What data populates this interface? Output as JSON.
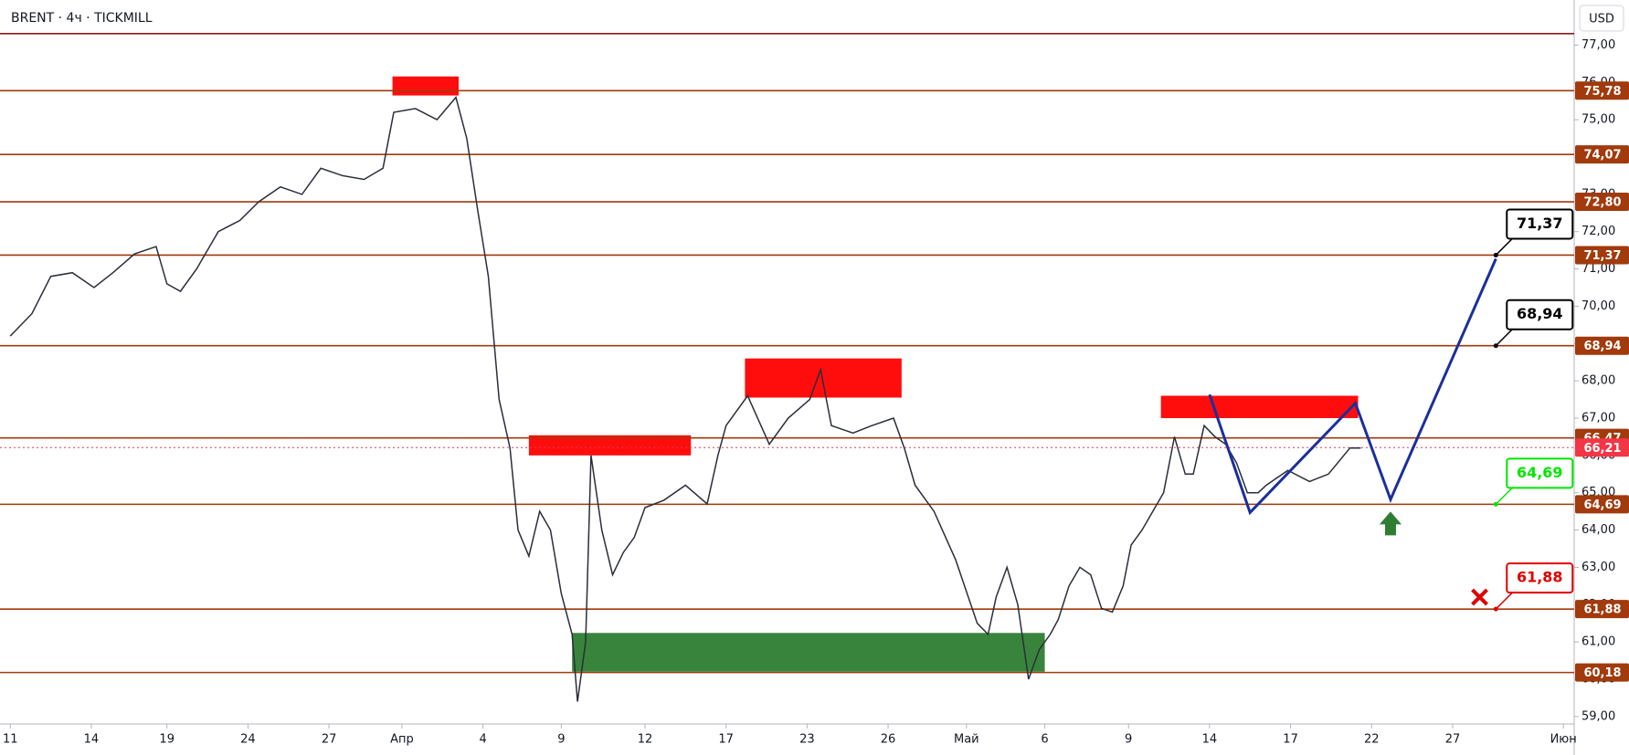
{
  "chart_data": {
    "type": "line",
    "title": "BRENT · 4ч · TICKMILL",
    "currency": "USD",
    "xlim": [
      -0.38,
      57.9
    ],
    "ylim": [
      58.8,
      78.21
    ],
    "grid": false,
    "xticks": [
      {
        "value": 0,
        "label": "11"
      },
      {
        "value": 3,
        "label": "14"
      },
      {
        "value": 5.8,
        "label": "19"
      },
      {
        "value": 8.8,
        "label": "24"
      },
      {
        "value": 11.8,
        "label": "27"
      },
      {
        "value": 14.5,
        "label": "Апр"
      },
      {
        "value": 17.5,
        "label": "4"
      },
      {
        "value": 20.4,
        "label": "9"
      },
      {
        "value": 23.5,
        "label": "12"
      },
      {
        "value": 26.5,
        "label": "17"
      },
      {
        "value": 29.5,
        "label": "23"
      },
      {
        "value": 32.5,
        "label": "26"
      },
      {
        "value": 35.4,
        "label": "Май"
      },
      {
        "value": 38.3,
        "label": "6"
      },
      {
        "value": 41.4,
        "label": "9"
      },
      {
        "value": 44.4,
        "label": "14"
      },
      {
        "value": 47.4,
        "label": "17"
      },
      {
        "value": 50.4,
        "label": "22"
      },
      {
        "value": 53.4,
        "label": "27"
      },
      {
        "value": 57.5,
        "label": "Июн"
      }
    ],
    "yticks": [
      {
        "value": 59,
        "label": "59,00"
      },
      {
        "value": 60,
        "label": "60,00"
      },
      {
        "value": 61,
        "label": "61,00"
      },
      {
        "value": 62,
        "label": "62,00"
      },
      {
        "value": 63,
        "label": "63,00"
      },
      {
        "value": 64,
        "label": "64,00"
      },
      {
        "value": 65,
        "label": "65,00"
      },
      {
        "value": 66,
        "label": "66,00"
      },
      {
        "value": 67,
        "label": "67,00"
      },
      {
        "value": 68,
        "label": "68,00"
      },
      {
        "value": 69,
        "label": "69,00"
      },
      {
        "value": 70,
        "label": "70,00"
      },
      {
        "value": 71,
        "label": "71,00"
      },
      {
        "value": 72,
        "label": "72,00"
      },
      {
        "value": 73,
        "label": "73,00"
      },
      {
        "value": 74,
        "label": "74,00"
      },
      {
        "value": 75,
        "label": "75,00"
      },
      {
        "value": 76,
        "label": "76,00"
      },
      {
        "value": 77,
        "label": "77,00"
      }
    ],
    "series": [
      {
        "color": "#2a2e39",
        "x": [
          0,
          0.8,
          1.5,
          2.3,
          3.1,
          3.8,
          4.6,
          5.4,
          5.8,
          6.3,
          6.9,
          7.7,
          8.5,
          9.2,
          10.0,
          10.8,
          11.5,
          12.3,
          13.1,
          13.8,
          14.2,
          15.0,
          15.8,
          16.5,
          16.9,
          17.3,
          17.7,
          18.1,
          18.5,
          18.8,
          19.2,
          19.6,
          20.0,
          20.4,
          20.8,
          21.0,
          21.3,
          21.5,
          21.9,
          22.3,
          22.7,
          23.1,
          23.5,
          24.2,
          25.0,
          25.8,
          26.2,
          26.5,
          27.3,
          28.1,
          28.8,
          29.6,
          30.0,
          30.4,
          31.2,
          31.9,
          32.7,
          33.1,
          33.5,
          34.2,
          35.0,
          35.8,
          36.2,
          36.5,
          36.9,
          37.3,
          37.7,
          38.1,
          38.5,
          38.8,
          39.2,
          39.6,
          40.0,
          40.4,
          40.8,
          41.2,
          41.5,
          41.9,
          42.3,
          42.7,
          43.1,
          43.5,
          43.8,
          44.2,
          44.6,
          45.0,
          45.4,
          45.8,
          46.2,
          46.5,
          47.3,
          48.1,
          48.8,
          49.6,
          50.0
        ],
        "values": [
          69.2,
          69.8,
          70.8,
          70.9,
          70.5,
          70.9,
          71.4,
          71.6,
          70.6,
          70.4,
          71.0,
          72.0,
          72.3,
          72.8,
          73.2,
          73.0,
          73.7,
          73.5,
          73.4,
          73.7,
          75.2,
          75.3,
          75.0,
          75.6,
          74.5,
          72.6,
          70.8,
          67.5,
          66.2,
          64.0,
          63.3,
          64.5,
          64.0,
          62.3,
          61.2,
          59.4,
          61.0,
          66.0,
          64.0,
          62.8,
          63.4,
          63.8,
          64.6,
          64.8,
          65.2,
          64.7,
          66.0,
          66.8,
          67.6,
          66.3,
          67.0,
          67.5,
          68.3,
          66.8,
          66.6,
          66.8,
          67.0,
          66.2,
          65.2,
          64.5,
          63.2,
          61.5,
          61.2,
          62.2,
          63.0,
          62.0,
          60.0,
          60.8,
          61.2,
          61.6,
          62.5,
          63.0,
          62.8,
          61.9,
          61.8,
          62.5,
          63.6,
          64.0,
          64.5,
          65.0,
          66.5,
          65.5,
          65.5,
          66.8,
          66.5,
          66.3,
          65.8,
          65.0,
          65.0,
          65.2,
          65.6,
          65.3,
          65.5,
          66.2,
          66.2
        ]
      }
    ],
    "levels": [
      {
        "value": 77.31,
        "color": "#8b1a1a",
        "label": null
      },
      {
        "value": 75.78,
        "label": "75,78",
        "color": "#a13a0c"
      },
      {
        "value": 74.07,
        "label": "74,07",
        "color": "#a13a0c"
      },
      {
        "value": 72.8,
        "label": "72,80",
        "color": "#a13a0c"
      },
      {
        "value": 71.37,
        "label": "71,37",
        "color": "#a13a0c"
      },
      {
        "value": 68.94,
        "label": "68,94",
        "color": "#a13a0c"
      },
      {
        "value": 66.47,
        "label": "66,47",
        "color": "#a13a0c"
      },
      {
        "value": 66.21,
        "label": "66,21",
        "color": "#f23645",
        "style": "dotted"
      },
      {
        "value": 64.69,
        "label": "64,69",
        "color": "#a13a0c"
      },
      {
        "value": 61.88,
        "label": "61,88",
        "color": "#a13a0c"
      },
      {
        "value": 60.18,
        "label": "60,18",
        "color": "#a13a0c"
      }
    ],
    "zones": [
      {
        "x": [
          14.15,
          16.6
        ],
        "y": [
          75.65,
          76.16
        ],
        "color": "#ff0000"
      },
      {
        "x": [
          19.2,
          25.2
        ],
        "y": [
          66.0,
          66.54
        ],
        "color": "#ff0000"
      },
      {
        "x": [
          27.2,
          33.0
        ],
        "y": [
          67.55,
          68.6
        ],
        "color": "#ff0000"
      },
      {
        "x": [
          42.6,
          49.9
        ],
        "y": [
          67.0,
          67.6
        ],
        "color": "#ff0000"
      },
      {
        "x": [
          20.8,
          38.3
        ],
        "y": [
          60.2,
          61.24
        ],
        "color": "#2e7d32"
      }
    ],
    "forecast": {
      "x": [
        44.4,
        45.9,
        49.8,
        51.1,
        55.0
      ],
      "values": [
        67.63,
        64.47,
        67.4,
        64.82,
        71.27
      ],
      "color": "#1a2f9c"
    },
    "callouts": [
      {
        "value": 71.37,
        "label": "71,37",
        "color": "#000000"
      },
      {
        "value": 68.94,
        "label": "68,94",
        "color": "#000000"
      },
      {
        "value": 64.69,
        "label": "64,69",
        "color": "#00e600"
      },
      {
        "value": 61.88,
        "label": "61,88",
        "color": "#e00000"
      }
    ],
    "markers": [
      {
        "x": 51.1,
        "value": 64.2,
        "shape": "arrow-up",
        "color": "#2e7d32"
      },
      {
        "x": 54.4,
        "value": 62.2,
        "shape": "cross",
        "color": "#e00000"
      }
    ]
  }
}
